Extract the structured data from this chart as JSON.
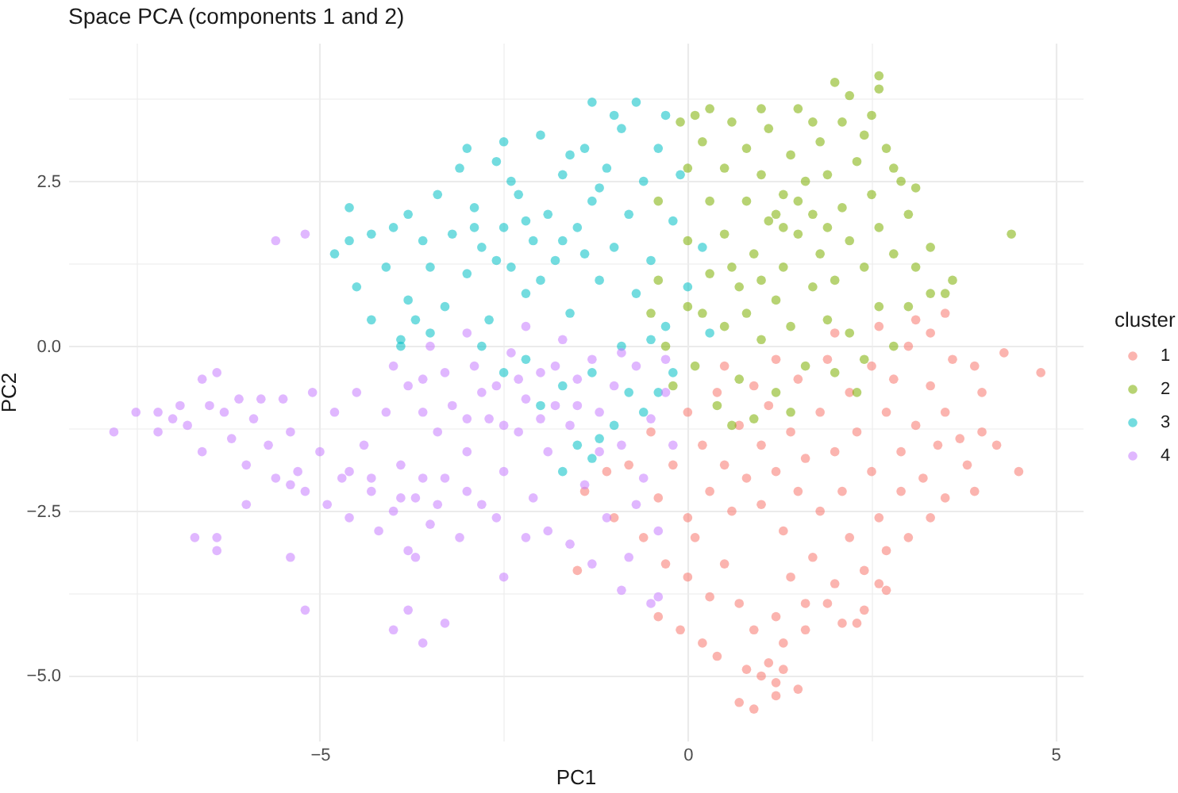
{
  "chart_data": {
    "type": "scatter",
    "title": "Space PCA (components 1 and 2)",
    "xlabel": "PC1",
    "ylabel": "PC2",
    "legend_title": "cluster",
    "xlim": [
      -8.42,
      5.37
    ],
    "ylim": [
      -5.98,
      4.6
    ],
    "xticks": [
      {
        "value": -7.5,
        "label": null
      },
      {
        "value": -5,
        "label": "−5"
      },
      {
        "value": -2.5,
        "label": null
      },
      0,
      {
        "value": 2.5,
        "label": null
      },
      5
    ],
    "yticks": [
      {
        "value": -5,
        "label": "−5.0"
      },
      {
        "value": -3.75,
        "label": null
      },
      {
        "value": -2.5,
        "label": "−2.5"
      },
      {
        "value": -1.25,
        "label": null
      },
      {
        "value": 0,
        "label": "0.0"
      },
      {
        "value": 1.25,
        "label": null
      },
      2.5,
      {
        "value": 3.75,
        "label": null
      }
    ],
    "grid": true,
    "legend": "right",
    "marker": "circle",
    "series": [
      {
        "name": "1",
        "color": "#f8766d",
        "x": [
          -1.4,
          -1.5,
          -1.0,
          -0.4,
          -0.1,
          0.0,
          0.5,
          0.2,
          0.4,
          0.9,
          0.7,
          1.2,
          1.5,
          1.1,
          2.7,
          2.3,
          2.1,
          4.0,
          4.5,
          4.8,
          4.3,
          3.9,
          3.1,
          3.5,
          -0.8,
          -0.5,
          -0.4,
          -0.2,
          0.0,
          0.0,
          0.2,
          0.3,
          0.4,
          0.5,
          0.6,
          0.7,
          0.8,
          0.9,
          1.0,
          1.0,
          1.1,
          1.2,
          1.3,
          1.4,
          1.5,
          1.5,
          1.6,
          1.7,
          1.8,
          1.8,
          1.9,
          2.0,
          2.0,
          2.1,
          2.2,
          2.2,
          2.3,
          2.4,
          2.5,
          2.5,
          2.6,
          2.7,
          2.7,
          2.8,
          2.9,
          2.9,
          3.0,
          3.0,
          3.1,
          3.2,
          3.3,
          3.4,
          3.5,
          3.5,
          3.6,
          3.7,
          3.8,
          3.3,
          2.6,
          2.4,
          1.9,
          1.6,
          1.4,
          1.6,
          1.3,
          1.2,
          0.9,
          1.0,
          1.3,
          0.8,
          1.2,
          0.7,
          0.3,
          -0.3,
          -0.6,
          -1.1,
          0.5,
          1.2,
          2.0,
          2.6,
          3.3,
          4.0,
          4.2,
          0.1,
          3.9
        ],
        "values": [
          -2.2,
          -3.4,
          -2.6,
          -4.1,
          -4.3,
          -3.5,
          -3.3,
          -4.5,
          -4.7,
          -5.5,
          -5.4,
          -5.3,
          -5.2,
          -4.8,
          -3.7,
          -4.2,
          -4.2,
          -1.3,
          -1.9,
          -0.4,
          -0.1,
          -0.3,
          0.4,
          0.5,
          -1.8,
          -1.3,
          -2.3,
          -1.8,
          -1.0,
          -2.6,
          -1.5,
          -2.2,
          -0.7,
          -1.8,
          -2.5,
          -1.2,
          -2.0,
          -0.6,
          -1.5,
          -2.4,
          -0.9,
          -1.9,
          -2.8,
          -1.3,
          -0.5,
          -2.2,
          -1.7,
          -3.2,
          -1.0,
          -2.5,
          -0.2,
          -1.6,
          -3.6,
          -2.2,
          -0.7,
          -2.9,
          -1.3,
          -3.4,
          -0.3,
          -1.9,
          -2.6,
          -1.0,
          -3.1,
          -0.5,
          -1.6,
          -2.2,
          0.0,
          -2.9,
          -1.2,
          -2.0,
          -0.6,
          -1.5,
          -1.0,
          -2.3,
          -0.2,
          -1.4,
          -1.8,
          -2.6,
          -3.6,
          -4.0,
          -3.9,
          -3.9,
          -3.5,
          -4.3,
          -4.5,
          -4.1,
          -4.3,
          -5.0,
          -4.9,
          -4.9,
          -5.1,
          -3.9,
          -3.8,
          -3.3,
          -2.9,
          -1.9,
          -0.3,
          -0.2,
          0.2,
          0.3,
          0.2,
          -0.7,
          -1.5,
          -2.9,
          -2.2
        ]
      },
      {
        "name": "2",
        "color": "#7cae00",
        "x": [
          -0.1,
          0.1,
          1.0,
          2.0,
          2.6,
          2.6,
          4.4,
          3.1,
          3.0,
          3.5,
          3.3,
          3.1,
          2.8,
          -0.4,
          -0.4,
          -0.3,
          -0.2,
          0.0,
          0.0,
          0.0,
          0.1,
          0.2,
          0.3,
          0.3,
          0.4,
          0.5,
          0.5,
          0.5,
          0.6,
          0.7,
          0.7,
          0.8,
          0.8,
          0.9,
          0.9,
          1.0,
          1.0,
          1.1,
          1.1,
          1.2,
          1.2,
          1.3,
          1.3,
          1.4,
          1.4,
          1.5,
          1.5,
          1.6,
          1.6,
          1.7,
          1.7,
          1.8,
          1.8,
          1.9,
          1.9,
          2.0,
          2.0,
          2.1,
          2.1,
          2.2,
          2.2,
          2.3,
          2.4,
          2.4,
          2.5,
          2.5,
          2.6,
          2.6,
          2.7,
          2.8,
          2.8,
          2.9,
          3.0,
          0.6,
          1.4,
          2.3,
          0.2,
          1.0,
          0.6,
          1.3,
          1.7,
          2.2,
          0.3,
          1.2,
          0.8,
          1.9,
          1.5,
          2.4,
          -0.5,
          3.3,
          3.6
        ],
        "values": [
          3.4,
          3.5,
          3.6,
          4.0,
          4.1,
          3.9,
          1.7,
          2.4,
          2.0,
          0.8,
          0.8,
          1.2,
          2.7,
          1.0,
          2.2,
          0.0,
          -0.6,
          0.6,
          1.6,
          2.7,
          -0.3,
          3.1,
          1.1,
          2.2,
          -0.9,
          0.3,
          1.7,
          2.7,
          3.4,
          -0.5,
          0.9,
          2.2,
          3.0,
          1.4,
          -1.1,
          0.1,
          2.6,
          1.9,
          3.3,
          0.7,
          -0.7,
          2.3,
          1.2,
          2.9,
          0.3,
          1.7,
          3.6,
          2.5,
          -0.3,
          0.9,
          2.0,
          3.1,
          1.4,
          0.4,
          2.6,
          1.0,
          -0.4,
          2.1,
          3.4,
          1.6,
          0.2,
          2.8,
          1.2,
          -0.2,
          2.3,
          3.5,
          0.6,
          1.8,
          3.0,
          0.0,
          1.4,
          2.5,
          0.6,
          -1.2,
          -1.0,
          -0.7,
          0.5,
          1.0,
          1.2,
          1.8,
          3.4,
          3.8,
          3.6,
          2.0,
          0.5,
          1.8,
          2.2,
          3.2,
          0.5,
          1.5,
          1.0
        ]
      },
      {
        "name": "3",
        "color": "#00bfc4",
        "x": [
          -4.6,
          -4.8,
          -4.5,
          -4.3,
          -3.9,
          -4.6,
          -4.3,
          -4.1,
          -3.8,
          -3.8,
          -3.6,
          -4.0,
          -3.7,
          -3.9,
          -3.5,
          -3.4,
          -3.3,
          -3.2,
          -3.1,
          -3.0,
          -2.9,
          -2.8,
          -2.7,
          -2.6,
          -2.5,
          -2.5,
          -2.4,
          -2.3,
          -2.2,
          -2.1,
          -2.0,
          -1.9,
          -1.8,
          -1.7,
          -1.6,
          -1.5,
          -1.4,
          -1.3,
          -1.3,
          -1.2,
          -1.1,
          -1.0,
          -0.9,
          -0.8,
          -0.7,
          -0.7,
          -0.6,
          -0.5,
          -0.4,
          -0.3,
          -0.2,
          -0.1,
          0.0,
          0.2,
          0.3,
          -2.6,
          -2.2,
          -1.7,
          -2.9,
          -2.0,
          -1.4,
          -1.2,
          -1.6,
          -2.4,
          -3.0,
          -1.0,
          -0.3,
          -3.5,
          -2.8,
          -2.2,
          -1.7,
          -1.3,
          -0.8,
          -0.5,
          -1.0,
          -1.7,
          -1.3,
          -1.5,
          -1.2,
          -0.6,
          -2.0,
          -0.9,
          -0.4,
          -0.2,
          -2.5
        ],
        "values": [
          2.1,
          1.4,
          0.9,
          0.4,
          0.1,
          1.6,
          1.7,
          1.2,
          2.0,
          0.7,
          1.6,
          1.8,
          0.4,
          0.0,
          1.2,
          2.3,
          0.6,
          1.7,
          2.7,
          1.1,
          2.1,
          1.5,
          0.4,
          2.8,
          1.8,
          3.1,
          1.2,
          2.3,
          0.8,
          1.6,
          3.2,
          2.0,
          1.3,
          2.6,
          0.5,
          1.8,
          3.0,
          3.7,
          2.2,
          1.0,
          2.7,
          1.5,
          3.3,
          2.0,
          3.7,
          0.8,
          2.5,
          1.3,
          3.0,
          0.3,
          1.9,
          2.6,
          0.9,
          1.5,
          0.2,
          1.3,
          1.9,
          1.6,
          1.8,
          1.0,
          1.4,
          2.4,
          2.9,
          2.5,
          3.0,
          3.5,
          3.5,
          0.2,
          0.0,
          -0.2,
          -0.6,
          -0.4,
          -0.7,
          0.1,
          -1.2,
          -1.9,
          -1.7,
          -1.5,
          -1.4,
          -1.0,
          -0.9,
          0.0,
          -0.7,
          -0.4,
          -0.4
        ]
      },
      {
        "name": "4",
        "color": "#c77cff",
        "x": [
          -7.8,
          -7.5,
          -7.2,
          -7.2,
          -7.0,
          -6.9,
          -6.8,
          -6.6,
          -6.6,
          -6.4,
          -6.5,
          -6.3,
          -6.2,
          -6.1,
          -6.0,
          -5.9,
          -5.8,
          -5.7,
          -5.6,
          -5.5,
          -5.4,
          -5.3,
          -5.2,
          -5.1,
          -5.0,
          -4.9,
          -4.8,
          -4.7,
          -4.6,
          -4.5,
          -4.4,
          -4.3,
          -4.2,
          -4.1,
          -4.0,
          -3.9,
          -3.8,
          -3.7,
          -3.6,
          -3.5,
          -3.4,
          -3.3,
          -3.2,
          -3.1,
          -3.0,
          -2.9,
          -2.8,
          -2.7,
          -2.6,
          -2.5,
          -2.4,
          -2.3,
          -2.2,
          -2.1,
          -2.0,
          -1.9,
          -1.8,
          -1.7,
          -1.6,
          -1.5,
          -1.4,
          -1.3,
          -1.2,
          -1.1,
          -1.0,
          -0.9,
          -0.8,
          -0.7,
          -0.6,
          -0.5,
          -0.4,
          -0.3,
          -0.5,
          -0.4,
          -0.9,
          -1.6,
          -2.5,
          -2.2,
          -6.7,
          -6.4,
          -6.4,
          -6.0,
          -5.4,
          -5.2,
          -4.0,
          -3.8,
          -3.6,
          -3.3,
          -3.7,
          -5.6,
          -5.2,
          -3.5,
          -4.0,
          -3.0,
          -2.2,
          -1.2,
          -0.2,
          -1.9,
          -0.7,
          -1.3,
          -3.8,
          -3.3,
          -2.8,
          -2.3,
          -1.8,
          -3.6,
          -3.0,
          -2.5,
          -2.0,
          -1.5,
          -4.3,
          -3.9,
          -3.4,
          -3.0,
          -2.6,
          -3.6,
          -4.6,
          -5.4,
          -0.9,
          -0.3
        ],
        "values": [
          -1.3,
          -1.0,
          -1.0,
          -1.3,
          -1.1,
          -0.9,
          -1.2,
          -1.6,
          -0.5,
          -0.4,
          -0.9,
          -1.0,
          -1.4,
          -0.8,
          -1.8,
          -1.1,
          -0.8,
          -1.5,
          -2.0,
          -0.8,
          -1.3,
          -1.9,
          -2.2,
          -0.7,
          -1.6,
          -2.4,
          -1.0,
          -2.0,
          -2.6,
          -0.7,
          -1.5,
          -2.2,
          -2.8,
          -1.0,
          -2.5,
          -1.8,
          -3.1,
          -2.3,
          -0.5,
          -2.7,
          -1.3,
          -2.0,
          -0.9,
          -2.9,
          -1.6,
          -0.3,
          -2.4,
          -1.1,
          -0.6,
          -1.9,
          -0.1,
          -1.3,
          -0.8,
          -2.3,
          -0.4,
          -1.6,
          -0.9,
          0.1,
          -1.2,
          -0.5,
          -2.1,
          -0.2,
          -1.0,
          -2.6,
          -0.6,
          -1.5,
          -3.2,
          -0.3,
          -2.0,
          -1.1,
          -2.8,
          -0.7,
          -3.9,
          -3.8,
          -3.7,
          -3.0,
          -3.5,
          -2.9,
          -2.9,
          -2.9,
          -3.1,
          -2.4,
          -3.2,
          -4.0,
          -4.3,
          -4.0,
          -4.5,
          -4.2,
          -3.2,
          1.6,
          1.7,
          0.0,
          -0.3,
          0.2,
          0.3,
          -1.6,
          -1.5,
          -2.8,
          -2.4,
          -3.3,
          -0.6,
          -0.4,
          -0.7,
          -0.5,
          -0.3,
          -1.0,
          -1.1,
          -1.2,
          -1.1,
          -0.9,
          -2.0,
          -2.3,
          -2.4,
          -2.2,
          -2.6,
          -2.0,
          -1.9,
          -2.1,
          -0.1,
          -0.2
        ]
      }
    ]
  }
}
